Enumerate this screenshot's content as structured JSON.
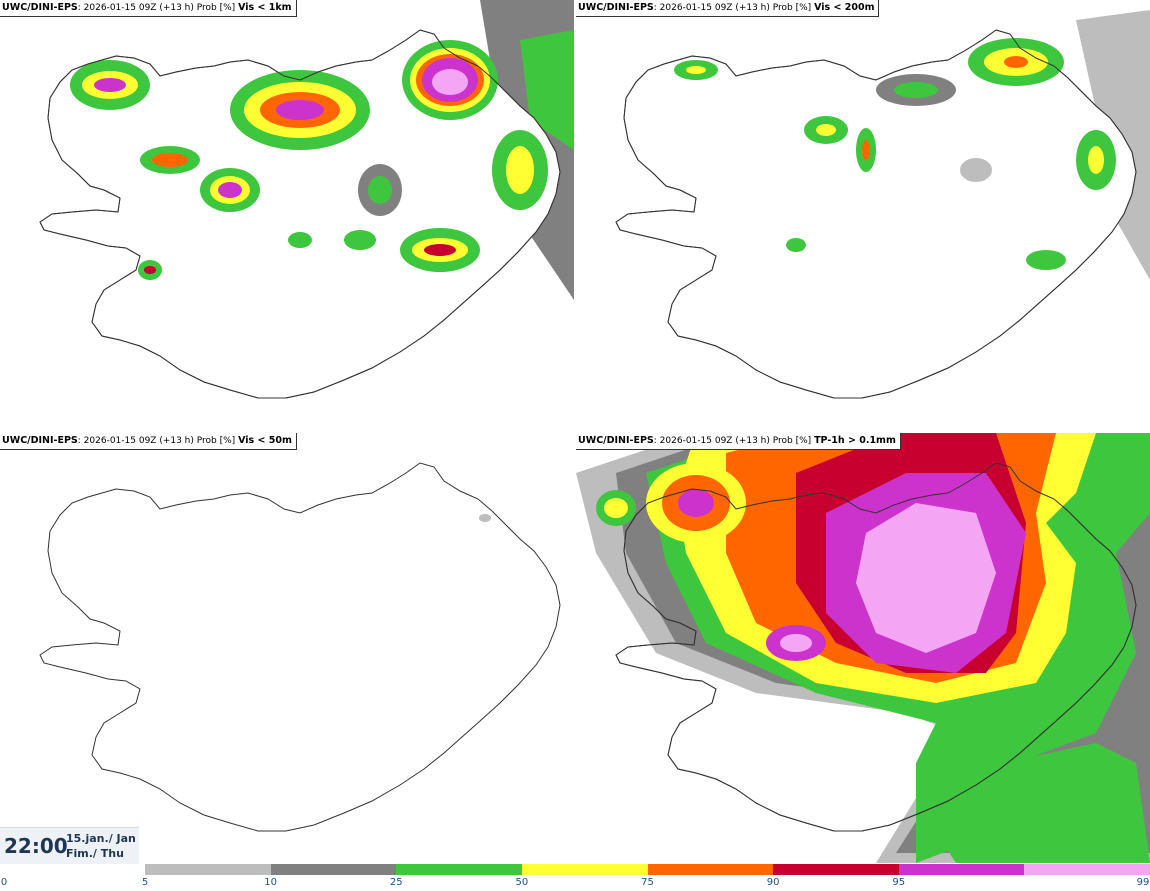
{
  "panels": [
    {
      "model": "UWC/DINI-EPS",
      "info": ": 2026-01-15 09Z (+13 h) Prob [%]",
      "variable": "Vis < 1km"
    },
    {
      "model": "UWC/DINI-EPS",
      "info": ": 2026-01-15 09Z (+13 h) Prob [%]",
      "variable": "Vis < 200m"
    },
    {
      "model": "UWC/DINI-EPS",
      "info": ": 2026-01-15 09Z (+13 h) Prob [%]",
      "variable": "Vis < 50m"
    },
    {
      "model": "UWC/DINI-EPS",
      "info": ": 2026-01-15 09Z (+13 h) Prob [%]",
      "variable": "TP-1h > 0.1mm"
    }
  ],
  "valid_time": {
    "time": "22:00",
    "date": "15.jan./ Jan",
    "weekday": "Fim./ Thu"
  },
  "colorbar": {
    "ticks": [
      "0",
      "5",
      "10",
      "25",
      "50",
      "75",
      "90",
      "95",
      "99"
    ],
    "colors": [
      "#bdbdbd",
      "#808080",
      "#3ec63e",
      "#ffff33",
      "#ff6600",
      "#c8002f",
      "#cc33cc",
      "#f4a6f4"
    ]
  }
}
